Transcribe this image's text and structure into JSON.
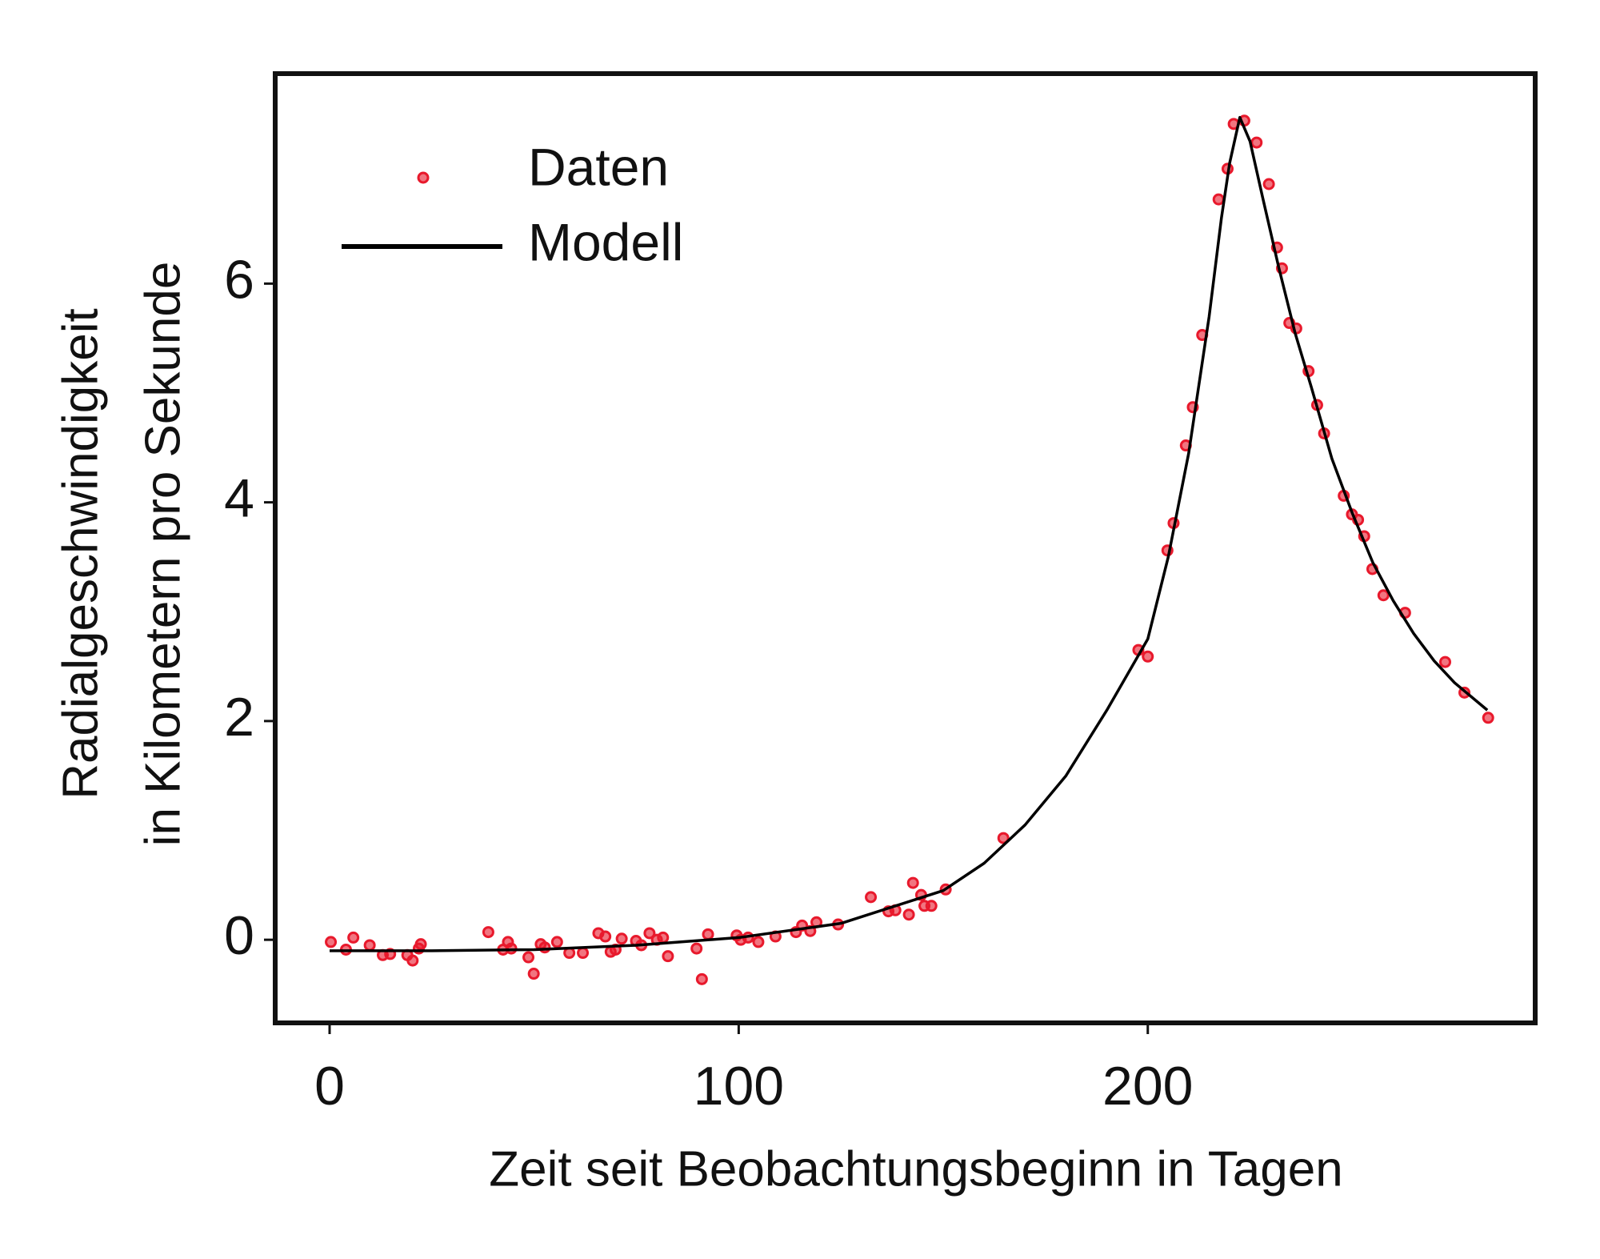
{
  "chart_data": {
    "type": "scatter",
    "xlabel": "Zeit seit Beobachtungsbeginn in Tagen",
    "ylabel": [
      "Radialgeschwindigkeit",
      "in Kilometern pro Sekunde"
    ],
    "xlim": [
      -13.3,
      294.7
    ],
    "ylim": [
      -0.76,
      7.92
    ],
    "xticks": [
      0,
      100,
      200
    ],
    "yticks": [
      0,
      2,
      4,
      6
    ],
    "series": [
      {
        "name": "Daten",
        "type": "scatter",
        "color": "#e8192c",
        "x": [
          0.3,
          4,
          5.8,
          9.8,
          13,
          14.8,
          19,
          20.3,
          21.8,
          22.3,
          38.8,
          42.4,
          43.6,
          44.4,
          48.6,
          49.9,
          51.6,
          52.6,
          55.6,
          58.6,
          61.9,
          65.7,
          67.4,
          68.7,
          69.9,
          71.4,
          74.9,
          76.2,
          78.2,
          80,
          81.5,
          82.7,
          89.7,
          91,
          92.5,
          99.5,
          100.5,
          102.3,
          104.8,
          109,
          114,
          115.5,
          117.5,
          119,
          124.3,
          132.3,
          136.6,
          138.3,
          141.6,
          142.6,
          144.6,
          145.4,
          147.1,
          150.6,
          164.7,
          197.7,
          200,
          204.8,
          206.3,
          209.3,
          211,
          213.3,
          217.3,
          219.5,
          221,
          223.6,
          226.6,
          229.6,
          231.6,
          232.8,
          234.6,
          236.3,
          239.3,
          241.4,
          243.1,
          247.9,
          249.9,
          251.4,
          252.9,
          254.9,
          257.6,
          262.9,
          272.7,
          277.4,
          283.2
        ],
        "values": [
          -0.02,
          -0.09,
          0.02,
          -0.05,
          -0.14,
          -0.13,
          -0.14,
          -0.19,
          -0.08,
          -0.04,
          0.07,
          -0.09,
          -0.02,
          -0.08,
          -0.16,
          -0.31,
          -0.04,
          -0.07,
          -0.02,
          -0.12,
          -0.12,
          0.06,
          0.03,
          -0.11,
          -0.09,
          0.01,
          -0.01,
          -0.05,
          0.06,
          0,
          0.02,
          -0.15,
          -0.08,
          -0.36,
          0.05,
          0.04,
          0,
          0.02,
          -0.02,
          0.03,
          0.07,
          0.13,
          0.08,
          0.16,
          0.14,
          0.39,
          0.26,
          0.27,
          0.23,
          0.52,
          0.41,
          0.31,
          0.31,
          0.46,
          0.93,
          2.65,
          2.59,
          3.56,
          3.81,
          4.52,
          4.87,
          5.53,
          6.77,
          7.05,
          7.46,
          7.49,
          7.29,
          6.91,
          6.33,
          6.14,
          5.64,
          5.59,
          5.2,
          4.89,
          4.63,
          4.06,
          3.89,
          3.84,
          3.69,
          3.39,
          3.15,
          2.99,
          2.54,
          2.26,
          2.03
        ]
      },
      {
        "name": "Modell",
        "type": "line",
        "color": "#000000",
        "x": [
          0,
          25,
          50,
          75,
          100,
          125,
          150,
          160,
          170,
          180,
          190,
          200,
          205,
          210,
          215,
          218,
          220,
          222.5,
          225,
          228,
          232,
          236,
          240,
          245,
          250,
          255,
          260,
          265,
          270,
          275,
          283
        ],
        "values": [
          -0.1,
          -0.1,
          -0.09,
          -0.05,
          0.02,
          0.15,
          0.45,
          0.7,
          1.05,
          1.5,
          2.1,
          2.75,
          3.5,
          4.45,
          5.7,
          6.6,
          7.1,
          7.52,
          7.3,
          6.8,
          6.15,
          5.55,
          5.05,
          4.4,
          3.9,
          3.45,
          3.1,
          2.8,
          2.55,
          2.35,
          2.1
        ]
      }
    ]
  }
}
